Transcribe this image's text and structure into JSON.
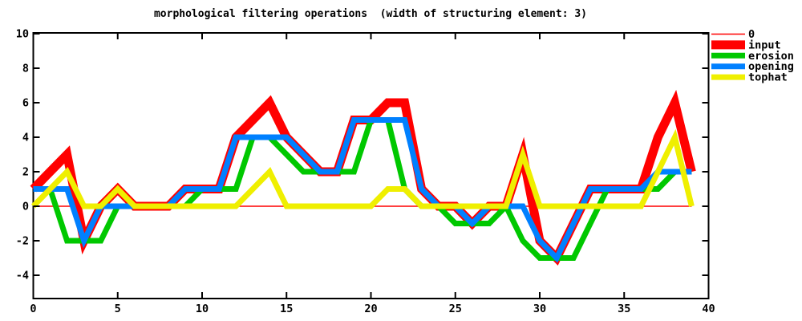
{
  "chart_data": {
    "type": "line",
    "title": "morphological filtering operations  (width of structuring element: 3)",
    "xlabel": "",
    "ylabel": "",
    "x": [
      0,
      1,
      2,
      3,
      4,
      5,
      6,
      7,
      8,
      9,
      10,
      11,
      12,
      13,
      14,
      15,
      16,
      17,
      18,
      19,
      20,
      21,
      22,
      23,
      24,
      25,
      26,
      27,
      28,
      29,
      30,
      31,
      32,
      33,
      34,
      35,
      36,
      37,
      38,
      39
    ],
    "series": [
      {
        "name": "0",
        "color": "#ff0000",
        "line_width": 1.4,
        "values": [
          0,
          0,
          0,
          0,
          0,
          0,
          0,
          0,
          0,
          0,
          0,
          0,
          0,
          0,
          0,
          0,
          0,
          0,
          0,
          0,
          0,
          0,
          0,
          0,
          0,
          0,
          0,
          0,
          0,
          0,
          0,
          0,
          0,
          0,
          0,
          0,
          0,
          0,
          0,
          0
        ]
      },
      {
        "name": "input",
        "color": "#ff0000",
        "line_width": 11,
        "values": [
          1,
          2,
          3,
          -2,
          0,
          1,
          0,
          0,
          0,
          1,
          1,
          1,
          4,
          5,
          6,
          4,
          3,
          2,
          2,
          5,
          5,
          6,
          6,
          1,
          0,
          0,
          -1,
          0,
          0,
          3,
          -2,
          -3,
          -1,
          1,
          1,
          1,
          1,
          4,
          6,
          2
        ]
      },
      {
        "name": "erosion",
        "color": "#00c800",
        "line_width": 7,
        "values": [
          1,
          1,
          -2,
          -2,
          -2,
          0,
          0,
          0,
          0,
          0,
          1,
          1,
          1,
          4,
          4,
          3,
          2,
          2,
          2,
          2,
          5,
          5,
          1,
          0,
          0,
          -1,
          -1,
          -1,
          0,
          -2,
          -3,
          -3,
          -3,
          -1,
          1,
          1,
          1,
          1,
          2,
          2
        ]
      },
      {
        "name": "opening",
        "color": "#0080ff",
        "line_width": 7,
        "values": [
          1,
          1,
          1,
          -2,
          0,
          0,
          0,
          0,
          0,
          1,
          1,
          1,
          4,
          4,
          4,
          4,
          3,
          2,
          2,
          5,
          5,
          5,
          5,
          1,
          0,
          0,
          -1,
          0,
          0,
          0,
          -2,
          -3,
          -1,
          1,
          1,
          1,
          1,
          2,
          2,
          2
        ]
      },
      {
        "name": "tophat",
        "color": "#efef00",
        "line_width": 7,
        "values": [
          0,
          1,
          2,
          0,
          0,
          1,
          0,
          0,
          0,
          0,
          0,
          0,
          0,
          1,
          2,
          0,
          0,
          0,
          0,
          0,
          0,
          1,
          1,
          0,
          0,
          0,
          0,
          0,
          0,
          3,
          0,
          0,
          0,
          0,
          0,
          0,
          0,
          2,
          4,
          0
        ]
      }
    ],
    "xlim": [
      0,
      40
    ],
    "ylim": [
      -5.4,
      10.1
    ],
    "xticks": [
      0,
      5,
      10,
      15,
      20,
      25,
      30,
      35,
      40
    ],
    "yticks": [
      -4,
      -2,
      0,
      2,
      4,
      6,
      8,
      10
    ],
    "grid": "off",
    "legend_position": "outside-right-top"
  },
  "legend": {
    "entries": [
      {
        "label": "0",
        "color": "#ff0000",
        "sample_width": 1.4
      },
      {
        "label": "input",
        "color": "#ff0000",
        "sample_width": 11
      },
      {
        "label": "erosion",
        "color": "#00c800",
        "sample_width": 7
      },
      {
        "label": "opening",
        "color": "#0080ff",
        "sample_width": 7
      },
      {
        "label": "tophat",
        "color": "#efef00",
        "sample_width": 7
      }
    ]
  },
  "frame_color": "#000000"
}
